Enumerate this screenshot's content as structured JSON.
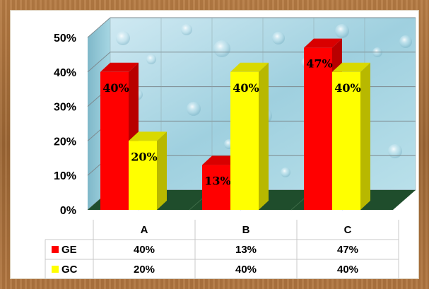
{
  "chart_data": {
    "type": "bar",
    "title": "",
    "xlabel": "",
    "ylabel": "",
    "categories": [
      "A",
      "B",
      "C"
    ],
    "series": [
      {
        "name": "GE",
        "values": [
          40,
          13,
          47
        ],
        "labels": [
          "40%",
          "13%",
          "47%"
        ],
        "color": "#ff0000"
      },
      {
        "name": "GC",
        "values": [
          20,
          40,
          40
        ],
        "labels": [
          "20%",
          "40%",
          "40%"
        ],
        "color": "#ffff00"
      }
    ],
    "ylim": [
      0,
      50
    ],
    "yticks": [
      "0%",
      "10%",
      "20%",
      "30%",
      "40%",
      "50%"
    ],
    "grid": true,
    "legend": "data-table",
    "three_d": true
  }
}
